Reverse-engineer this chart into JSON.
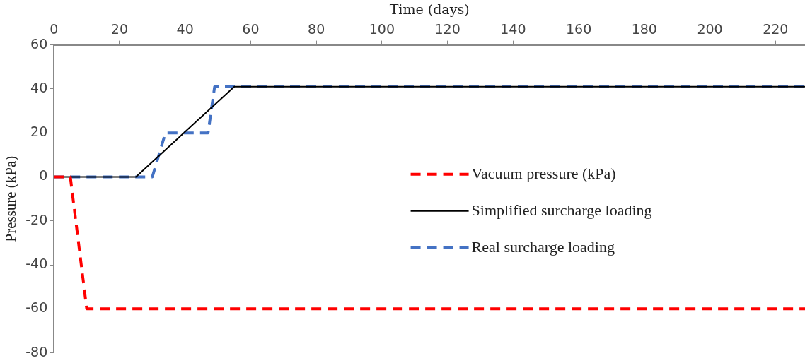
{
  "chart_data": {
    "type": "line",
    "xlabel": "Time (days)",
    "ylabel": "Pressure (kPa)",
    "xlim": [
      0,
      229
    ],
    "xticks": [
      0,
      20,
      40,
      60,
      80,
      100,
      120,
      140,
      160,
      180,
      200,
      220
    ],
    "ylim": [
      -80,
      60
    ],
    "yticks": [
      -80,
      -60,
      -40,
      -20,
      0,
      20,
      40,
      60
    ],
    "grid": false,
    "legend": "right",
    "marker": "none",
    "series": [
      {
        "name": "Vacuum pressure (kPa)",
        "color": "#ff0000",
        "line_style": "dashed",
        "x": [
          0,
          5,
          10,
          229
        ],
        "values": [
          0,
          0,
          -60,
          -60
        ]
      },
      {
        "name": "Simplified surcharge loading",
        "color": "#000000",
        "line_style": "solid",
        "x": [
          0,
          25,
          55,
          229
        ],
        "values": [
          0,
          0,
          41,
          41
        ]
      },
      {
        "name": "Real surcharge loading",
        "color": "#4472c4",
        "line_style": "dashed",
        "x": [
          0,
          30,
          34,
          47,
          49,
          229
        ],
        "values": [
          0,
          0,
          20,
          20,
          41,
          41
        ]
      }
    ]
  }
}
